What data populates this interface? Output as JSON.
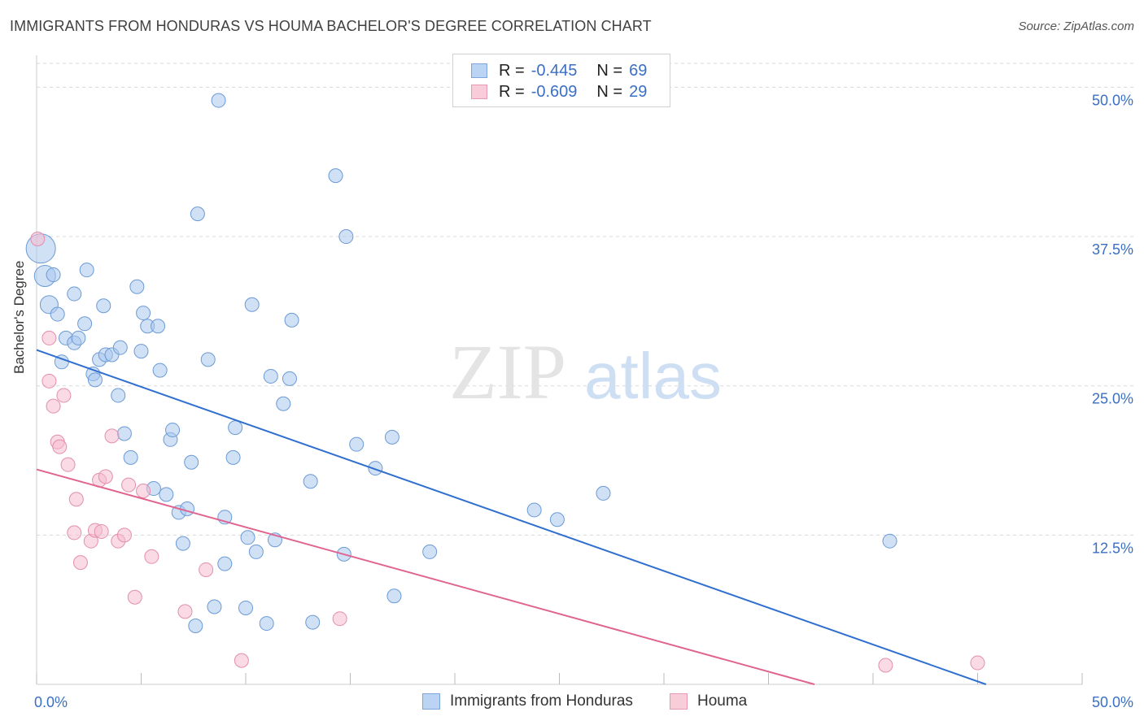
{
  "header": {
    "title": "IMMIGRANTS FROM HONDURAS VS HOUMA BACHELOR'S DEGREE CORRELATION CHART",
    "source": "Source: ZipAtlas.com"
  },
  "watermark": {
    "zip": "ZIP",
    "atlas": "atlas"
  },
  "legend": {
    "series1": {
      "r_label": "R =",
      "r_value": "-0.445",
      "n_label": "N =",
      "n_value": "69"
    },
    "series2": {
      "r_label": "R =",
      "r_value": "-0.609",
      "n_label": "N =",
      "n_value": "29"
    }
  },
  "bottom_legend": {
    "series1": "Immigrants from Honduras",
    "series2": "Houma"
  },
  "colors": {
    "series1_fill": "#a9c8ef",
    "series1_stroke": "#6b9ad6",
    "series1_line": "#2f6fcf",
    "series2_fill": "#f6bccd",
    "series2_stroke": "#e38fab",
    "series2_line": "#e0648f",
    "tick_text": "#3a6fc4",
    "grid": "#d9d9d9"
  },
  "chart_data": {
    "type": "scatter",
    "title": "IMMIGRANTS FROM HONDURAS VS HOUMA BACHELOR'S DEGREE CORRELATION CHART",
    "xlabel": "",
    "ylabel": "Bachelor's Degree",
    "xlim": [
      0,
      50
    ],
    "ylim": [
      0,
      52
    ],
    "x_tick_labels": [
      "0.0%",
      "50.0%"
    ],
    "y_ticks": [
      12.5,
      25.0,
      37.5,
      50.0
    ],
    "y_tick_labels": [
      "12.5%",
      "25.0%",
      "37.5%",
      "50.0%"
    ],
    "grid": true,
    "legend_position": "top-center",
    "series": [
      {
        "name": "Immigrants from Honduras",
        "r": -0.445,
        "n": 69,
        "trend": [
          [
            0,
            28.0
          ],
          [
            45.4,
            0
          ]
        ],
        "points": [
          [
            0.2,
            36.5
          ],
          [
            0.4,
            34.2
          ],
          [
            0.6,
            31.8
          ],
          [
            0.8,
            34.3
          ],
          [
            1.0,
            31.0
          ],
          [
            1.2,
            27.0
          ],
          [
            1.4,
            29.0
          ],
          [
            1.8,
            32.7
          ],
          [
            1.8,
            28.6
          ],
          [
            2.0,
            29.0
          ],
          [
            2.3,
            30.2
          ],
          [
            2.4,
            34.7
          ],
          [
            2.7,
            26.0
          ],
          [
            2.8,
            25.5
          ],
          [
            3.0,
            27.2
          ],
          [
            3.2,
            31.7
          ],
          [
            3.3,
            27.6
          ],
          [
            3.6,
            27.6
          ],
          [
            3.9,
            24.2
          ],
          [
            4.0,
            28.2
          ],
          [
            4.2,
            21.0
          ],
          [
            4.5,
            19.0
          ],
          [
            4.8,
            33.3
          ],
          [
            5.0,
            27.9
          ],
          [
            5.1,
            31.1
          ],
          [
            5.3,
            30.0
          ],
          [
            5.6,
            16.4
          ],
          [
            5.8,
            30.0
          ],
          [
            5.9,
            26.3
          ],
          [
            6.2,
            15.9
          ],
          [
            6.4,
            20.5
          ],
          [
            6.5,
            21.3
          ],
          [
            6.8,
            14.4
          ],
          [
            7.0,
            11.8
          ],
          [
            7.2,
            14.7
          ],
          [
            7.4,
            18.6
          ],
          [
            7.6,
            4.9
          ],
          [
            7.7,
            39.4
          ],
          [
            8.2,
            27.2
          ],
          [
            8.5,
            6.5
          ],
          [
            8.7,
            48.9
          ],
          [
            9.0,
            14.0
          ],
          [
            9.0,
            10.1
          ],
          [
            9.4,
            19.0
          ],
          [
            9.5,
            21.5
          ],
          [
            10.0,
            6.4
          ],
          [
            10.1,
            12.3
          ],
          [
            10.3,
            31.8
          ],
          [
            10.5,
            11.1
          ],
          [
            11.0,
            5.1
          ],
          [
            11.2,
            25.8
          ],
          [
            11.4,
            12.1
          ],
          [
            11.8,
            23.5
          ],
          [
            12.1,
            25.6
          ],
          [
            12.2,
            30.5
          ],
          [
            13.2,
            5.2
          ],
          [
            13.1,
            17.0
          ],
          [
            14.3,
            42.6
          ],
          [
            14.7,
            10.9
          ],
          [
            14.8,
            37.5
          ],
          [
            15.3,
            20.1
          ],
          [
            16.2,
            18.1
          ],
          [
            17.0,
            20.7
          ],
          [
            17.1,
            7.4
          ],
          [
            18.8,
            11.1
          ],
          [
            23.8,
            14.6
          ],
          [
            24.9,
            13.8
          ],
          [
            27.1,
            16.0
          ],
          [
            40.8,
            12.0
          ]
        ]
      },
      {
        "name": "Houma",
        "r": -0.609,
        "n": 29,
        "trend": [
          [
            0,
            18.0
          ],
          [
            37.2,
            0
          ]
        ],
        "points": [
          [
            0.05,
            37.3
          ],
          [
            0.6,
            25.4
          ],
          [
            0.6,
            29.0
          ],
          [
            0.8,
            23.3
          ],
          [
            1.0,
            20.3
          ],
          [
            1.1,
            19.9
          ],
          [
            1.3,
            24.2
          ],
          [
            1.5,
            18.4
          ],
          [
            1.8,
            12.7
          ],
          [
            1.9,
            15.5
          ],
          [
            2.1,
            10.2
          ],
          [
            2.6,
            12.0
          ],
          [
            2.8,
            12.9
          ],
          [
            3.0,
            17.1
          ],
          [
            3.1,
            12.8
          ],
          [
            3.3,
            17.4
          ],
          [
            3.6,
            20.8
          ],
          [
            3.9,
            12.0
          ],
          [
            4.2,
            12.5
          ],
          [
            4.4,
            16.7
          ],
          [
            4.7,
            7.3
          ],
          [
            5.1,
            16.2
          ],
          [
            5.5,
            10.7
          ],
          [
            7.1,
            6.1
          ],
          [
            8.1,
            9.6
          ],
          [
            9.8,
            2.0
          ],
          [
            14.5,
            5.5
          ],
          [
            40.6,
            1.6
          ],
          [
            45.0,
            1.8
          ]
        ]
      }
    ]
  }
}
